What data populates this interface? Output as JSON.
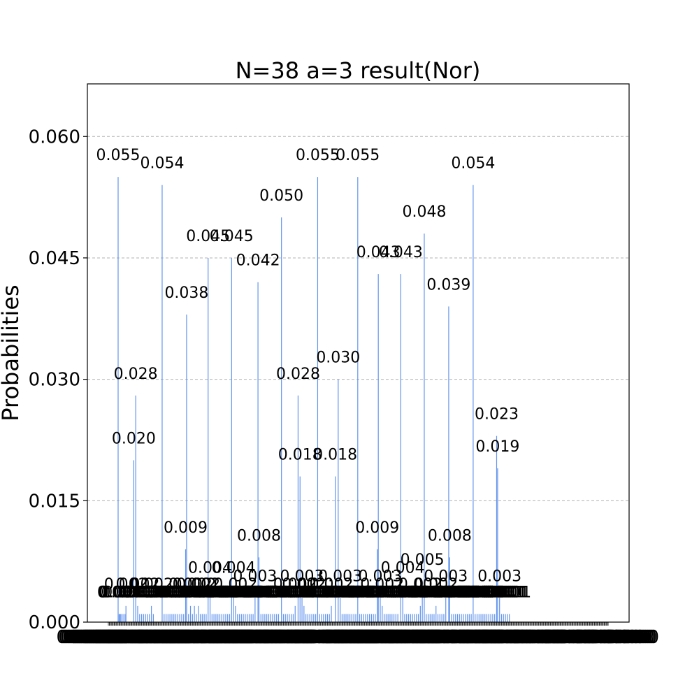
{
  "chart_data": {
    "type": "bar",
    "title": "N=38 a=3 result(Nor)",
    "xlabel": "",
    "ylabel": "Probabilities",
    "ylim": [
      0,
      0.0665
    ],
    "yticks": [
      "0.000",
      "0.015",
      "0.030",
      "0.045",
      "0.060"
    ],
    "ytick_values": [
      0,
      0.015,
      0.03,
      0.045,
      0.06
    ],
    "grid": true,
    "bar_color": "#6495ed",
    "bin_count": 512,
    "bars": [
      {
        "bin": 10,
        "value": 0.055,
        "label": "0.055"
      },
      {
        "bin": 11,
        "value": 0.001,
        "label": "0.001"
      },
      {
        "bin": 12,
        "value": 0.001,
        "label": "0.001"
      },
      {
        "bin": 13,
        "value": 0.001,
        "label": "0.001"
      },
      {
        "bin": 15,
        "value": 0.001,
        "label": "0.001"
      },
      {
        "bin": 17,
        "value": 0.001,
        "label": "0.001"
      },
      {
        "bin": 18,
        "value": 0.002,
        "label": "0.002"
      },
      {
        "bin": 26,
        "value": 0.02,
        "label": "0.020"
      },
      {
        "bin": 28,
        "value": 0.028,
        "label": "0.028"
      },
      {
        "bin": 30,
        "value": 0.002,
        "label": "0.002"
      },
      {
        "bin": 32,
        "value": 0.001,
        "label": "0.001"
      },
      {
        "bin": 34,
        "value": 0.001,
        "label": "0.001"
      },
      {
        "bin": 36,
        "value": 0.001,
        "label": "0.001"
      },
      {
        "bin": 38,
        "value": 0.001,
        "label": "0.001"
      },
      {
        "bin": 40,
        "value": 0.001,
        "label": "0.001"
      },
      {
        "bin": 42,
        "value": 0.001,
        "label": "0.001"
      },
      {
        "bin": 44,
        "value": 0.002,
        "label": "0.002"
      },
      {
        "bin": 46,
        "value": 0.001,
        "label": "0.001"
      },
      {
        "bin": 55,
        "value": 0.054,
        "label": "0.054"
      },
      {
        "bin": 57,
        "value": 0.001,
        "label": "0.001"
      },
      {
        "bin": 59,
        "value": 0.001,
        "label": "0.001"
      },
      {
        "bin": 61,
        "value": 0.001,
        "label": "0.001"
      },
      {
        "bin": 63,
        "value": 0.001,
        "label": "0.001"
      },
      {
        "bin": 65,
        "value": 0.001,
        "label": "0.001"
      },
      {
        "bin": 67,
        "value": 0.001,
        "label": "0.001"
      },
      {
        "bin": 69,
        "value": 0.001,
        "label": "0.001"
      },
      {
        "bin": 71,
        "value": 0.001,
        "label": "0.001"
      },
      {
        "bin": 73,
        "value": 0.001,
        "label": "0.001"
      },
      {
        "bin": 75,
        "value": 0.001,
        "label": "0.001"
      },
      {
        "bin": 77,
        "value": 0.001,
        "label": "0.001"
      },
      {
        "bin": 79,
        "value": 0.009,
        "label": "0.009"
      },
      {
        "bin": 80,
        "value": 0.038,
        "label": "0.038"
      },
      {
        "bin": 82,
        "value": 0.001,
        "label": "0.001"
      },
      {
        "bin": 84,
        "value": 0.002,
        "label": "0.002"
      },
      {
        "bin": 86,
        "value": 0.001,
        "label": "0.001"
      },
      {
        "bin": 88,
        "value": 0.002,
        "label": "0.002"
      },
      {
        "bin": 90,
        "value": 0.001,
        "label": "0.001"
      },
      {
        "bin": 92,
        "value": 0.002,
        "label": "0.002"
      },
      {
        "bin": 94,
        "value": 0.001,
        "label": "0.001"
      },
      {
        "bin": 96,
        "value": 0.001,
        "label": "0.001"
      },
      {
        "bin": 98,
        "value": 0.001,
        "label": "0.001"
      },
      {
        "bin": 100,
        "value": 0.001,
        "label": "0.001"
      },
      {
        "bin": 102,
        "value": 0.045,
        "label": "0.045"
      },
      {
        "bin": 104,
        "value": 0.004,
        "label": "0.004"
      },
      {
        "bin": 106,
        "value": 0.001,
        "label": "0.001"
      },
      {
        "bin": 108,
        "value": 0.001,
        "label": "0.001"
      },
      {
        "bin": 110,
        "value": 0.001,
        "label": "0.001"
      },
      {
        "bin": 112,
        "value": 0.001,
        "label": "0.001"
      },
      {
        "bin": 114,
        "value": 0.001,
        "label": "0.001"
      },
      {
        "bin": 116,
        "value": 0.001,
        "label": "0.001"
      },
      {
        "bin": 118,
        "value": 0.001,
        "label": "0.001"
      },
      {
        "bin": 120,
        "value": 0.001,
        "label": "0.001"
      },
      {
        "bin": 122,
        "value": 0.001,
        "label": "0.001"
      },
      {
        "bin": 124,
        "value": 0.001,
        "label": "0.001"
      },
      {
        "bin": 126,
        "value": 0.045,
        "label": "0.045"
      },
      {
        "bin": 128,
        "value": 0.004,
        "label": "0.004"
      },
      {
        "bin": 130,
        "value": 0.002,
        "label": "0.002"
      },
      {
        "bin": 132,
        "value": 0.001,
        "label": "0.001"
      },
      {
        "bin": 134,
        "value": 0.001,
        "label": "0.001"
      },
      {
        "bin": 136,
        "value": 0.001,
        "label": "0.001"
      },
      {
        "bin": 138,
        "value": 0.001,
        "label": "0.001"
      },
      {
        "bin": 140,
        "value": 0.001,
        "label": "0.001"
      },
      {
        "bin": 142,
        "value": 0.001,
        "label": "0.001"
      },
      {
        "bin": 144,
        "value": 0.001,
        "label": "0.001"
      },
      {
        "bin": 146,
        "value": 0.001,
        "label": "0.001"
      },
      {
        "bin": 148,
        "value": 0.001,
        "label": "0.001"
      },
      {
        "bin": 150,
        "value": 0.003,
        "label": "0.003"
      },
      {
        "bin": 153,
        "value": 0.042,
        "label": "0.042"
      },
      {
        "bin": 154,
        "value": 0.008,
        "label": "0.008"
      },
      {
        "bin": 156,
        "value": 0.001,
        "label": "0.001"
      },
      {
        "bin": 158,
        "value": 0.001,
        "label": "0.001"
      },
      {
        "bin": 160,
        "value": 0.001,
        "label": "0.001"
      },
      {
        "bin": 162,
        "value": 0.001,
        "label": "0.001"
      },
      {
        "bin": 164,
        "value": 0.001,
        "label": "0.001"
      },
      {
        "bin": 166,
        "value": 0.001,
        "label": "0.001"
      },
      {
        "bin": 168,
        "value": 0.001,
        "label": "0.001"
      },
      {
        "bin": 170,
        "value": 0.001,
        "label": "0.001"
      },
      {
        "bin": 172,
        "value": 0.001,
        "label": "0.001"
      },
      {
        "bin": 174,
        "value": 0.001,
        "label": "0.001"
      },
      {
        "bin": 177,
        "value": 0.05,
        "label": "0.050"
      },
      {
        "bin": 179,
        "value": 0.001,
        "label": "0.001"
      },
      {
        "bin": 181,
        "value": 0.001,
        "label": "0.001"
      },
      {
        "bin": 183,
        "value": 0.001,
        "label": "0.001"
      },
      {
        "bin": 185,
        "value": 0.001,
        "label": "0.001"
      },
      {
        "bin": 187,
        "value": 0.001,
        "label": "0.001"
      },
      {
        "bin": 189,
        "value": 0.001,
        "label": "0.001"
      },
      {
        "bin": 191,
        "value": 0.002,
        "label": "0.002"
      },
      {
        "bin": 194,
        "value": 0.028,
        "label": "0.028"
      },
      {
        "bin": 196,
        "value": 0.018,
        "label": "0.018"
      },
      {
        "bin": 198,
        "value": 0.003,
        "label": "0.003"
      },
      {
        "bin": 200,
        "value": 0.002,
        "label": "0.002"
      },
      {
        "bin": 202,
        "value": 0.001,
        "label": "0.001"
      },
      {
        "bin": 204,
        "value": 0.001,
        "label": "0.001"
      },
      {
        "bin": 206,
        "value": 0.001,
        "label": "0.001"
      },
      {
        "bin": 208,
        "value": 0.001,
        "label": "0.001"
      },
      {
        "bin": 210,
        "value": 0.001,
        "label": "0.001"
      },
      {
        "bin": 212,
        "value": 0.001,
        "label": "0.001"
      },
      {
        "bin": 214,
        "value": 0.055,
        "label": "0.055"
      },
      {
        "bin": 216,
        "value": 0.001,
        "label": "0.001"
      },
      {
        "bin": 218,
        "value": 0.001,
        "label": "0.001"
      },
      {
        "bin": 220,
        "value": 0.001,
        "label": "0.001"
      },
      {
        "bin": 222,
        "value": 0.001,
        "label": "0.001"
      },
      {
        "bin": 224,
        "value": 0.001,
        "label": "0.001"
      },
      {
        "bin": 226,
        "value": 0.001,
        "label": "0.001"
      },
      {
        "bin": 228,
        "value": 0.002,
        "label": "0.002"
      },
      {
        "bin": 232,
        "value": 0.018,
        "label": "0.018"
      },
      {
        "bin": 235,
        "value": 0.03,
        "label": "0.030"
      },
      {
        "bin": 237,
        "value": 0.003,
        "label": "0.003"
      },
      {
        "bin": 239,
        "value": 0.001,
        "label": "0.001"
      },
      {
        "bin": 241,
        "value": 0.001,
        "label": "0.001"
      },
      {
        "bin": 243,
        "value": 0.001,
        "label": "0.001"
      },
      {
        "bin": 245,
        "value": 0.001,
        "label": "0.001"
      },
      {
        "bin": 247,
        "value": 0.001,
        "label": "0.001"
      },
      {
        "bin": 249,
        "value": 0.001,
        "label": "0.001"
      },
      {
        "bin": 251,
        "value": 0.001,
        "label": "0.001"
      },
      {
        "bin": 253,
        "value": 0.001,
        "label": "0.001"
      },
      {
        "bin": 255,
        "value": 0.055,
        "label": "0.055"
      },
      {
        "bin": 257,
        "value": 0.001,
        "label": "0.001"
      },
      {
        "bin": 259,
        "value": 0.001,
        "label": "0.001"
      },
      {
        "bin": 261,
        "value": 0.001,
        "label": "0.001"
      },
      {
        "bin": 263,
        "value": 0.001,
        "label": "0.001"
      },
      {
        "bin": 265,
        "value": 0.001,
        "label": "0.001"
      },
      {
        "bin": 267,
        "value": 0.001,
        "label": "0.001"
      },
      {
        "bin": 269,
        "value": 0.001,
        "label": "0.001"
      },
      {
        "bin": 271,
        "value": 0.001,
        "label": "0.001"
      },
      {
        "bin": 273,
        "value": 0.001,
        "label": "0.001"
      },
      {
        "bin": 275,
        "value": 0.009,
        "label": "0.009"
      },
      {
        "bin": 276,
        "value": 0.043,
        "label": "0.043"
      },
      {
        "bin": 278,
        "value": 0.003,
        "label": "0.003"
      },
      {
        "bin": 280,
        "value": 0.002,
        "label": "0.002"
      },
      {
        "bin": 282,
        "value": 0.001,
        "label": "0.001"
      },
      {
        "bin": 284,
        "value": 0.001,
        "label": "0.001"
      },
      {
        "bin": 286,
        "value": 0.001,
        "label": "0.001"
      },
      {
        "bin": 288,
        "value": 0.001,
        "label": "0.001"
      },
      {
        "bin": 290,
        "value": 0.001,
        "label": "0.001"
      },
      {
        "bin": 292,
        "value": 0.001,
        "label": "0.001"
      },
      {
        "bin": 294,
        "value": 0.001,
        "label": "0.001"
      },
      {
        "bin": 296,
        "value": 0.001,
        "label": "0.001"
      },
      {
        "bin": 299,
        "value": 0.043,
        "label": "0.043"
      },
      {
        "bin": 301,
        "value": 0.004,
        "label": "0.004"
      },
      {
        "bin": 303,
        "value": 0.001,
        "label": "0.001"
      },
      {
        "bin": 305,
        "value": 0.001,
        "label": "0.001"
      },
      {
        "bin": 307,
        "value": 0.001,
        "label": "0.001"
      },
      {
        "bin": 309,
        "value": 0.001,
        "label": "0.001"
      },
      {
        "bin": 311,
        "value": 0.001,
        "label": "0.001"
      },
      {
        "bin": 313,
        "value": 0.001,
        "label": "0.001"
      },
      {
        "bin": 315,
        "value": 0.001,
        "label": "0.001"
      },
      {
        "bin": 317,
        "value": 0.001,
        "label": "0.001"
      },
      {
        "bin": 319,
        "value": 0.002,
        "label": "0.002"
      },
      {
        "bin": 321,
        "value": 0.005,
        "label": "0.005"
      },
      {
        "bin": 323,
        "value": 0.048,
        "label": "0.048"
      },
      {
        "bin": 325,
        "value": 0.001,
        "label": "0.001"
      },
      {
        "bin": 327,
        "value": 0.001,
        "label": "0.001"
      },
      {
        "bin": 329,
        "value": 0.001,
        "label": "0.001"
      },
      {
        "bin": 331,
        "value": 0.001,
        "label": "0.001"
      },
      {
        "bin": 333,
        "value": 0.001,
        "label": "0.001"
      },
      {
        "bin": 335,
        "value": 0.002,
        "label": "0.002"
      },
      {
        "bin": 337,
        "value": 0.001,
        "label": "0.001"
      },
      {
        "bin": 339,
        "value": 0.001,
        "label": "0.001"
      },
      {
        "bin": 341,
        "value": 0.001,
        "label": "0.001"
      },
      {
        "bin": 343,
        "value": 0.001,
        "label": "0.001"
      },
      {
        "bin": 345,
        "value": 0.003,
        "label": "0.003"
      },
      {
        "bin": 348,
        "value": 0.039,
        "label": "0.039"
      },
      {
        "bin": 349,
        "value": 0.008,
        "label": "0.008"
      },
      {
        "bin": 351,
        "value": 0.001,
        "label": "0.001"
      },
      {
        "bin": 353,
        "value": 0.001,
        "label": "0.001"
      },
      {
        "bin": 355,
        "value": 0.001,
        "label": "0.001"
      },
      {
        "bin": 357,
        "value": 0.001,
        "label": "0.001"
      },
      {
        "bin": 359,
        "value": 0.001,
        "label": "0.001"
      },
      {
        "bin": 361,
        "value": 0.001,
        "label": "0.001"
      },
      {
        "bin": 363,
        "value": 0.001,
        "label": "0.001"
      },
      {
        "bin": 365,
        "value": 0.001,
        "label": "0.001"
      },
      {
        "bin": 367,
        "value": 0.001,
        "label": "0.001"
      },
      {
        "bin": 369,
        "value": 0.001,
        "label": "0.001"
      },
      {
        "bin": 371,
        "value": 0.001,
        "label": "0.001"
      },
      {
        "bin": 373,
        "value": 0.054,
        "label": "0.054"
      },
      {
        "bin": 375,
        "value": 0.001,
        "label": "0.001"
      },
      {
        "bin": 377,
        "value": 0.001,
        "label": "0.001"
      },
      {
        "bin": 379,
        "value": 0.001,
        "label": "0.001"
      },
      {
        "bin": 381,
        "value": 0.001,
        "label": "0.001"
      },
      {
        "bin": 383,
        "value": 0.001,
        "label": "0.001"
      },
      {
        "bin": 385,
        "value": 0.001,
        "label": "0.001"
      },
      {
        "bin": 387,
        "value": 0.001,
        "label": "0.001"
      },
      {
        "bin": 389,
        "value": 0.001,
        "label": "0.001"
      },
      {
        "bin": 391,
        "value": 0.001,
        "label": "0.001"
      },
      {
        "bin": 393,
        "value": 0.001,
        "label": "0.001"
      },
      {
        "bin": 395,
        "value": 0.001,
        "label": "0.001"
      },
      {
        "bin": 397,
        "value": 0.023,
        "label": "0.023"
      },
      {
        "bin": 398,
        "value": 0.019,
        "label": "0.019"
      },
      {
        "bin": 400,
        "value": 0.003,
        "label": "0.003"
      },
      {
        "bin": 402,
        "value": 0.001,
        "label": "0.001"
      },
      {
        "bin": 404,
        "value": 0.001,
        "label": "0.001"
      },
      {
        "bin": 406,
        "value": 0.001,
        "label": "0.001"
      },
      {
        "bin": 408,
        "value": 0.001,
        "label": "0.001"
      },
      {
        "bin": 410,
        "value": 0.001,
        "label": "0.001"
      }
    ]
  }
}
